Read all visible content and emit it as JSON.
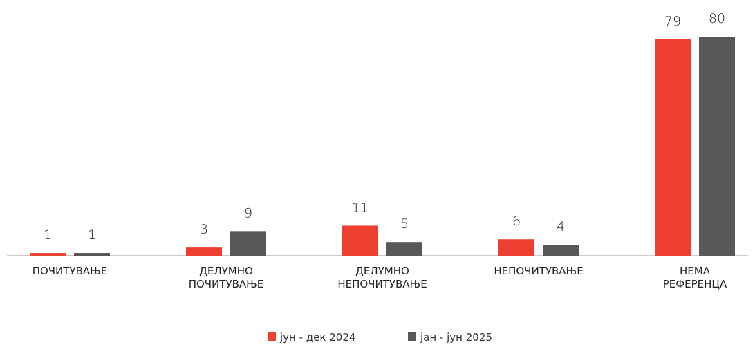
{
  "chart_data": {
    "type": "bar",
    "categories": [
      [
        "ПОЧИТУВАЊЕ"
      ],
      [
        "ДЕЛУМНО",
        "ПОЧИТУВАЊЕ"
      ],
      [
        "ДЕЛУМНО",
        "НЕПОЧИТУВАЊЕ"
      ],
      [
        "НЕПОЧИТУВАЊЕ"
      ],
      [
        "НЕМА",
        "РЕФЕРЕНЦА"
      ]
    ],
    "series": [
      {
        "name": "јун - дек 2024",
        "color": "#ee4030",
        "values": [
          1,
          3,
          11,
          6,
          79
        ]
      },
      {
        "name": "јан - јун 2025",
        "color": "#58585a",
        "values": [
          1,
          9,
          5,
          4,
          80
        ]
      }
    ],
    "ylim": [
      0,
      80
    ],
    "legend": "bottom"
  }
}
